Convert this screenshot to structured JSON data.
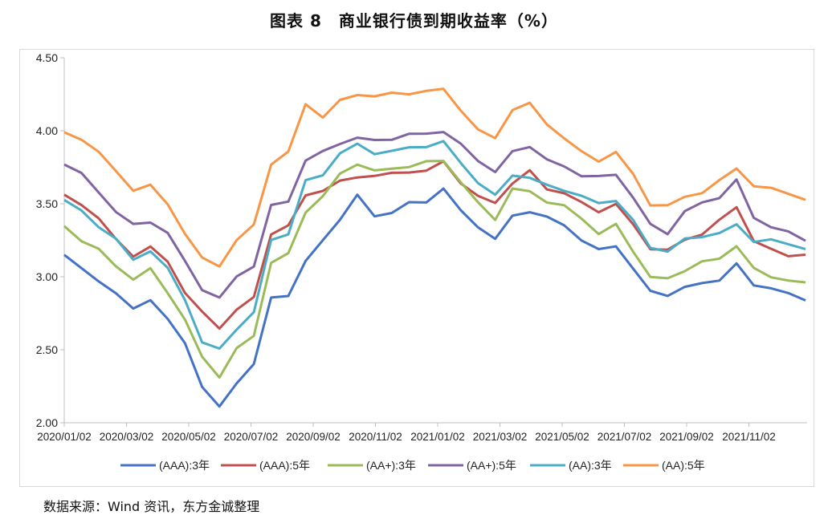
{
  "title": "图表 8　商业银行债到期收益率（%）",
  "source": "数据来源：Wind 资讯，东方金诚整理",
  "chart_data": {
    "type": "line",
    "ylim": [
      2.0,
      4.5
    ],
    "yticks": [
      "2.00",
      "2.50",
      "3.00",
      "3.50",
      "4.00",
      "4.50"
    ],
    "xticks": [
      "2020/01/02",
      "2020/03/02",
      "2020/05/02",
      "2020/07/02",
      "2020/09/02",
      "2020/11/02",
      "2021/01/02",
      "2021/03/02",
      "2021/05/02",
      "2021/07/02",
      "2021/09/02",
      "2021/11/02"
    ],
    "grid": false,
    "legend_position": "bottom",
    "series": [
      {
        "name": "(AAA):3年",
        "color": "#4472C4",
        "values": [
          3.15,
          3.05,
          2.98,
          2.88,
          2.78,
          2.85,
          2.7,
          2.55,
          2.25,
          2.1,
          2.28,
          2.4,
          2.85,
          2.88,
          3.1,
          3.25,
          3.4,
          3.55,
          3.42,
          3.44,
          3.5,
          3.52,
          3.6,
          3.45,
          3.35,
          3.25,
          3.42,
          3.45,
          3.4,
          3.36,
          3.25,
          3.18,
          3.22,
          3.05,
          2.9,
          2.88,
          2.92,
          2.96,
          2.98,
          3.08,
          2.95,
          2.92,
          2.88,
          2.85
        ]
      },
      {
        "name": "(AAA):5年",
        "color": "#C0504D",
        "values": [
          3.55,
          3.5,
          3.4,
          3.25,
          3.15,
          3.2,
          3.1,
          2.9,
          2.75,
          2.65,
          2.78,
          2.85,
          3.3,
          3.35,
          3.55,
          3.6,
          3.65,
          3.68,
          3.7,
          3.7,
          3.72,
          3.73,
          3.78,
          3.65,
          3.55,
          3.5,
          3.65,
          3.72,
          3.6,
          3.58,
          3.5,
          3.45,
          3.5,
          3.35,
          3.2,
          3.18,
          3.25,
          3.3,
          3.38,
          3.48,
          3.25,
          3.18,
          3.15,
          3.15
        ]
      },
      {
        "name": "(AA+):3年",
        "color": "#9BBB59",
        "values": [
          3.35,
          3.25,
          3.18,
          3.08,
          2.98,
          3.05,
          2.9,
          2.7,
          2.45,
          2.32,
          2.5,
          2.6,
          3.1,
          3.15,
          3.45,
          3.55,
          3.7,
          3.78,
          3.72,
          3.74,
          3.76,
          3.78,
          3.8,
          3.65,
          3.5,
          3.4,
          3.6,
          3.58,
          3.52,
          3.48,
          3.4,
          3.3,
          3.35,
          3.18,
          3.0,
          2.98,
          3.05,
          3.1,
          3.12,
          3.22,
          3.05,
          3.0,
          2.98,
          2.95
        ]
      },
      {
        "name": "(AA+):5年",
        "color": "#8064A2",
        "values": [
          3.78,
          3.7,
          3.58,
          3.45,
          3.35,
          3.38,
          3.3,
          3.1,
          2.92,
          2.85,
          3.0,
          3.08,
          3.48,
          3.52,
          3.8,
          3.85,
          3.92,
          3.95,
          3.93,
          3.95,
          3.97,
          3.98,
          4.0,
          3.9,
          3.8,
          3.72,
          3.85,
          3.9,
          3.8,
          3.75,
          3.7,
          3.68,
          3.7,
          3.55,
          3.35,
          3.3,
          3.45,
          3.5,
          3.55,
          3.66,
          3.4,
          3.35,
          3.3,
          3.25
        ]
      },
      {
        "name": "(AA):3年",
        "color": "#4BACC6",
        "values": [
          3.52,
          3.45,
          3.35,
          3.25,
          3.12,
          3.18,
          3.05,
          2.85,
          2.55,
          2.5,
          2.65,
          2.75,
          3.25,
          3.3,
          3.65,
          3.7,
          3.85,
          3.9,
          3.85,
          3.86,
          3.88,
          3.9,
          3.92,
          3.78,
          3.65,
          3.55,
          3.7,
          3.68,
          3.62,
          3.6,
          3.55,
          3.5,
          3.53,
          3.38,
          3.2,
          3.18,
          3.25,
          3.28,
          3.3,
          3.35,
          3.25,
          3.25,
          3.22,
          3.2
        ]
      },
      {
        "name": "(AA):5年",
        "color": "#F79646",
        "values": [
          3.98,
          3.95,
          3.85,
          3.72,
          3.6,
          3.62,
          3.5,
          3.3,
          3.12,
          3.08,
          3.25,
          3.35,
          3.78,
          3.85,
          4.18,
          4.1,
          4.2,
          4.25,
          4.24,
          4.25,
          4.26,
          4.27,
          4.28,
          4.15,
          4.0,
          3.95,
          4.15,
          4.18,
          4.05,
          3.95,
          3.85,
          3.8,
          3.85,
          3.7,
          3.5,
          3.48,
          3.55,
          3.58,
          3.65,
          3.75,
          3.62,
          3.6,
          3.58,
          3.52
        ]
      }
    ]
  }
}
